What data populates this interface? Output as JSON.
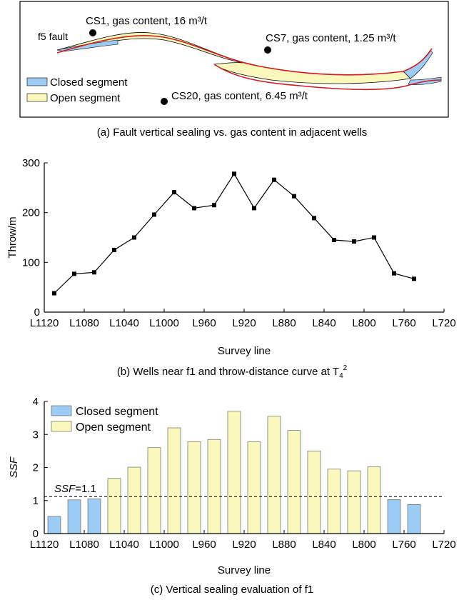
{
  "panel_a": {
    "caption": "(a) Fault vertical sealing vs. gas content in adjacent wells",
    "fault_label": "f5 fault",
    "wells": [
      {
        "name": "CS1",
        "text": "CS1, gas content, 16 m³/t"
      },
      {
        "name": "CS7",
        "text": "CS7, gas content, 1.25 m³/t"
      },
      {
        "name": "CS20",
        "text": "CS20, gas content, 6.45 m³/t"
      }
    ],
    "legend": [
      "Closed segment",
      "Open segment"
    ]
  },
  "chart_data": [
    {
      "type": "line",
      "caption_prefix": "(b) Wells near f1 and throw-distance curve at T",
      "caption_sub": "4",
      "caption_sup": "2",
      "xlabel": "Survey line",
      "ylabel": "Throw/m",
      "x_ticks": [
        "L1120",
        "L1080",
        "L1040",
        "L1000",
        "L960",
        "L920",
        "L880",
        "L840",
        "L800",
        "L760",
        "L720"
      ],
      "xlim": [
        1120,
        720
      ],
      "ylim": [
        0,
        300
      ],
      "y_ticks": [
        0,
        100,
        200,
        300
      ],
      "x": [
        1110,
        1090,
        1070,
        1050,
        1030,
        1010,
        990,
        970,
        950,
        930,
        910,
        890,
        870,
        850,
        830,
        810,
        790,
        770,
        750
      ],
      "values": [
        38,
        77,
        80,
        125,
        150,
        196,
        241,
        209,
        215,
        278,
        209,
        266,
        233,
        189,
        145,
        142,
        150,
        78,
        67
      ]
    },
    {
      "type": "bar",
      "caption": "(c) Vertical sealing evaluation of f1",
      "xlabel": "Survey line",
      "ylabel": "SSF",
      "x_ticks": [
        "L1120",
        "L1080",
        "L1040",
        "L1000",
        "L960",
        "L920",
        "L880",
        "L840",
        "L800",
        "L760",
        "L720"
      ],
      "xlim": [
        1120,
        720
      ],
      "ylim": [
        0,
        4
      ],
      "y_ticks": [
        0,
        1,
        2,
        3,
        4
      ],
      "threshold": {
        "value": 1.12,
        "label_var": "SSF",
        "label_val": "=1.1"
      },
      "legend": [
        "Closed segment",
        "Open segment"
      ],
      "colors": {
        "closed": "#9ccbf3",
        "open": "#fbf8bd"
      },
      "x": [
        1110,
        1090,
        1070,
        1050,
        1030,
        1010,
        990,
        970,
        950,
        930,
        910,
        890,
        870,
        850,
        830,
        810,
        790,
        770,
        750
      ],
      "values": [
        0.52,
        1.02,
        1.05,
        1.67,
        2.01,
        2.6,
        3.2,
        2.78,
        2.85,
        3.7,
        2.78,
        3.55,
        3.12,
        2.5,
        1.95,
        1.9,
        2.02,
        1.03,
        0.88
      ],
      "segment": [
        "closed",
        "closed",
        "closed",
        "open",
        "open",
        "open",
        "open",
        "open",
        "open",
        "open",
        "open",
        "open",
        "open",
        "open",
        "open",
        "open",
        "open",
        "closed",
        "closed"
      ]
    }
  ]
}
